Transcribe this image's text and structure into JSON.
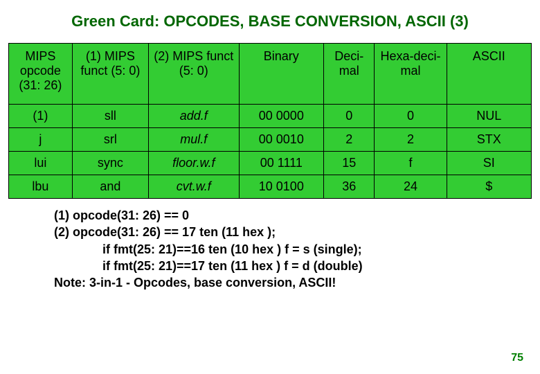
{
  "title_color": "#006600",
  "title": "Green Card: OPCODES, BASE CONVERSION, ASCII (3)",
  "table": {
    "header_bg": "#33cc33",
    "cell_bg": "#33cc33",
    "columns": [
      "MIPS opcode (31: 26)",
      "(1) MIPS funct (5: 0)",
      "(2) MIPS funct (5: 0)",
      "Binary",
      "Deci-mal",
      "Hexa-deci-mal",
      "ASCII"
    ],
    "rows": [
      {
        "c0": "(1)",
        "c1": "sll",
        "c2": "add.f",
        "c3": "00 0000",
        "c4": "0",
        "c5": "0",
        "c6": "NUL"
      },
      {
        "c0": "j",
        "c1": "srl",
        "c2": "mul.f",
        "c3": "00 0010",
        "c4": "2",
        "c5": "2",
        "c6": "STX"
      },
      {
        "c0": "lui",
        "c1": "sync",
        "c2": "floor.w.f",
        "c3": "00 1111",
        "c4": "15",
        "c5": "f",
        "c6": "SI"
      },
      {
        "c0": "lbu",
        "c1": "and",
        "c2": "cvt.w.f",
        "c3": "10 0100",
        "c4": "36",
        "c5": "24",
        "c6": "$"
      }
    ]
  },
  "notes": {
    "l1": "(1) opcode(31: 26) == 0",
    "l2": "(2) opcode(31: 26) == 17 ten (11 hex );",
    "l3": "if fmt(25: 21)==16 ten (10 hex ) f = s (single);",
    "l4": "if fmt(25: 21)==17 ten (11 hex ) f = d (double)",
    "l5": "Note: 3-in-1 - Opcodes, base conversion, ASCII!"
  },
  "page_number": "75",
  "page_number_color": "#008000"
}
